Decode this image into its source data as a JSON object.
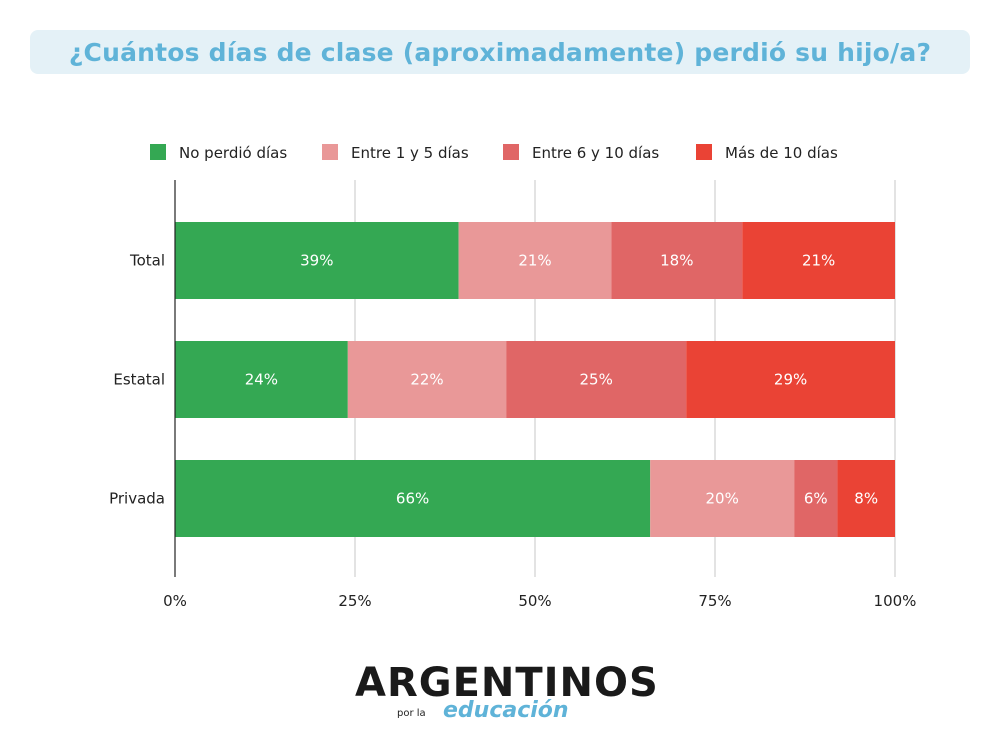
{
  "title": "¿Cuántos días de clase (aproximadamente) perdió su hijo/a?",
  "chart_data": {
    "type": "bar",
    "orientation": "horizontal",
    "stacked": true,
    "title": "¿Cuántos días de clase (aproximadamente) perdió su hijo/a?",
    "categories": [
      "Total",
      "Estatal",
      "Privada"
    ],
    "series": [
      {
        "name": "No perdió días",
        "color": "#34a853",
        "values": [
          39,
          24,
          66
        ],
        "labels": [
          "39%",
          "24%",
          "66%"
        ]
      },
      {
        "name": "Entre 1 y 5 días",
        "color": "#e99898",
        "values": [
          21,
          22,
          20
        ],
        "labels": [
          "21%",
          "22%",
          "20%"
        ]
      },
      {
        "name": "Entre 6 y 10 días",
        "color": "#e06666",
        "values": [
          18,
          25,
          6
        ],
        "labels": [
          "18%",
          "25%",
          "6%"
        ]
      },
      {
        "name": "Más de 10 días",
        "color": "#ea4335",
        "values": [
          21,
          29,
          8
        ],
        "labels": [
          "21%",
          "29%",
          "8%"
        ]
      }
    ],
    "xlim": [
      0,
      100
    ],
    "xticks": [
      "0%",
      "25%",
      "50%",
      "75%",
      "100%"
    ],
    "xtick_values": [
      0,
      25,
      50,
      75,
      100
    ],
    "grid": true,
    "legend": "top"
  },
  "logo": {
    "main": "ARGENTINOS",
    "sub1": "por la",
    "sub2": "educación"
  }
}
